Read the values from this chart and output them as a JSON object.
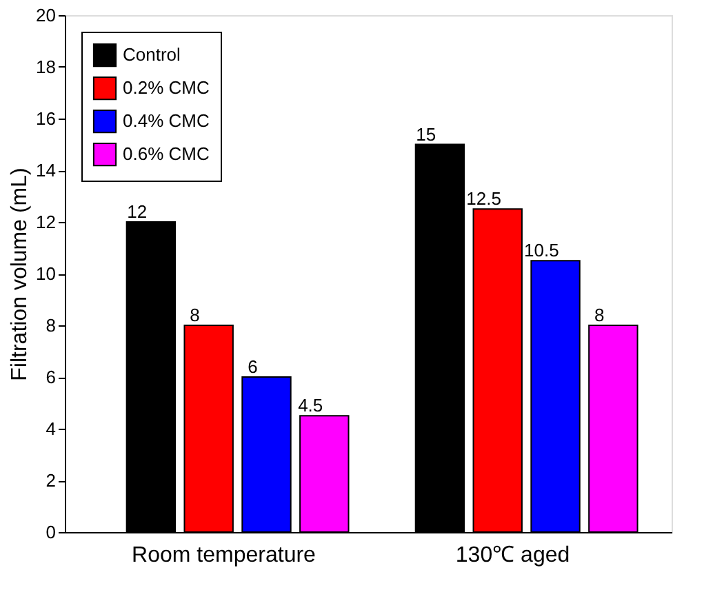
{
  "chart_data": {
    "type": "bar",
    "ylabel": "Filtration volume (mL)",
    "categories": [
      "Room temperature",
      "130℃ aged"
    ],
    "series": [
      {
        "name": "Control",
        "color": "#000000",
        "values": [
          12,
          15
        ]
      },
      {
        "name": "0.2% CMC",
        "color": "#ff0000",
        "values": [
          8,
          12.5
        ]
      },
      {
        "name": "0.4% CMC",
        "color": "#0000ff",
        "values": [
          6,
          10.5
        ]
      },
      {
        "name": "0.6% CMC",
        "color": "#ff00ff",
        "values": [
          4.5,
          8
        ]
      }
    ],
    "ylim": [
      0,
      20
    ],
    "yticks": [
      0,
      2,
      4,
      6,
      8,
      10,
      12,
      14,
      16,
      18,
      20
    ],
    "data_labels": true,
    "legend": "top left",
    "grid": false
  }
}
